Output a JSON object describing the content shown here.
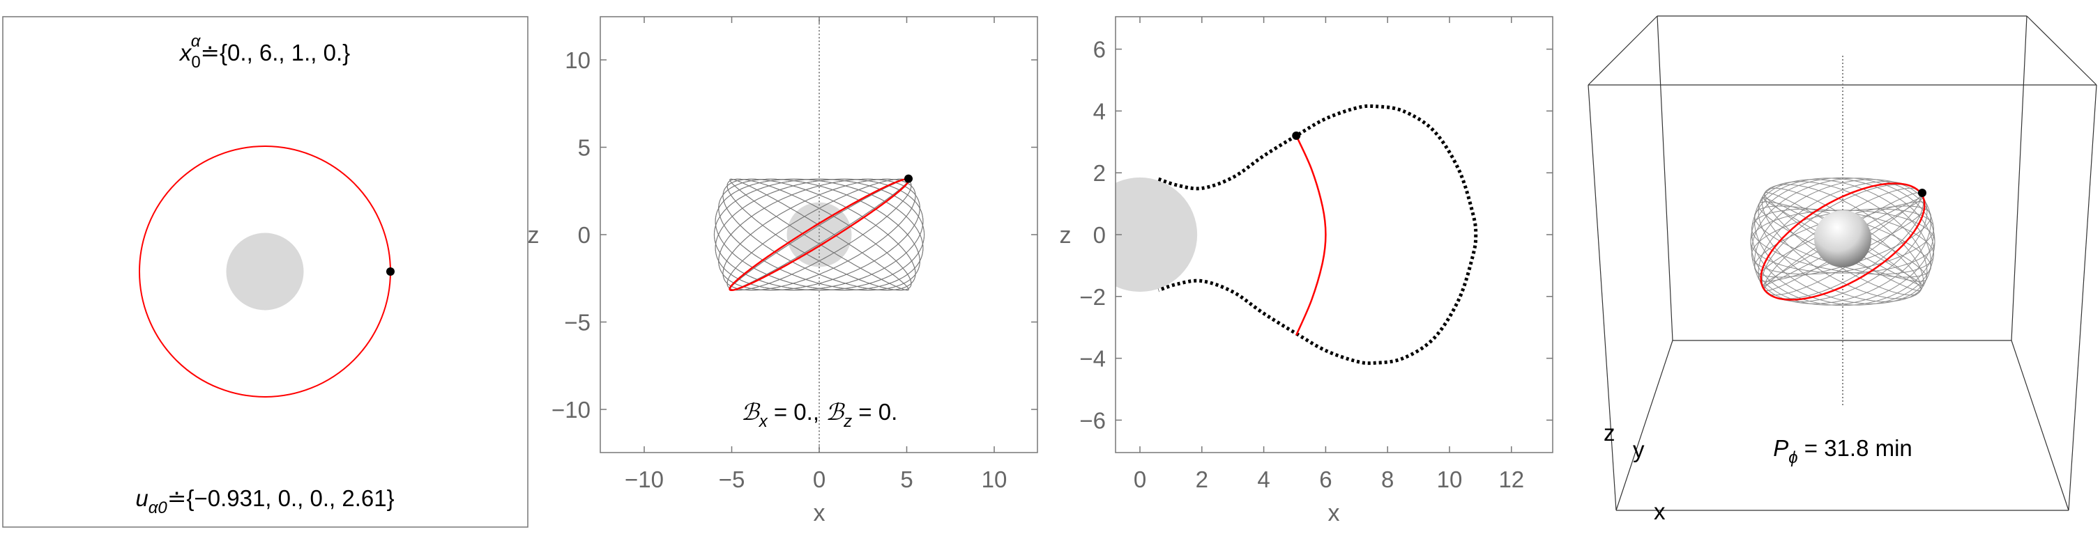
{
  "chart_data": [
    {
      "type": "line",
      "panel": "top-view",
      "caption_top": {
        "symbol": "x",
        "sub": "0",
        "sup": "α",
        "value": "≐{0., 6., 1., 0.}"
      },
      "caption_bottom": {
        "symbol": "u",
        "sub": "α0",
        "value": "≐{−0.931, 0., 0., 2.61}"
      },
      "orbit_radius": 6,
      "body_radius": 1.85,
      "marker": [
        6,
        0
      ],
      "colors": {
        "orbit": "#ff0000",
        "body": "#d9d9d9",
        "marker": "#000000"
      }
    },
    {
      "type": "line",
      "panel": "x-z projection",
      "xlabel": "x",
      "ylabel": "z",
      "xlim": [
        -12.5,
        12.5
      ],
      "ylim": [
        -12.5,
        12.5
      ],
      "xticks": [
        "−10",
        "−5",
        "0",
        "5",
        "10"
      ],
      "xtick_values": [
        -10,
        -5,
        0,
        5,
        10
      ],
      "yticks": [
        "−10",
        "−5",
        "0",
        "5",
        "10"
      ],
      "ytick_values": [
        -10,
        -5,
        0,
        5,
        10
      ],
      "caption": {
        "b1": "ℬ",
        "s1": "x",
        "v1": " = 0., ",
        "b2": "ℬ",
        "s2": "z",
        "v2": " = 0."
      },
      "orbit": {
        "radius": 6,
        "inclination_deg": 32,
        "precession_count": 22,
        "highlight_node_deg": -80
      },
      "body_radius": 1.85,
      "axis_line_z": [
        -12.5,
        12.5
      ],
      "marker": [
        5.1,
        3.2
      ],
      "colors": {
        "orbit": "#ff0000",
        "mesh": "#777777",
        "body": "#d9d9d9"
      }
    },
    {
      "type": "line",
      "panel": "meridional x-z",
      "xlabel": "x",
      "ylabel": "z",
      "xlim": [
        -0.8,
        13.3
      ],
      "ylim": [
        -7.1,
        7.1
      ],
      "xticks": [
        "0",
        "2",
        "4",
        "6",
        "8",
        "10",
        "12"
      ],
      "xtick_values": [
        0,
        2,
        4,
        6,
        8,
        10,
        12
      ],
      "yticks": [
        "−6",
        "−4",
        "−2",
        "0",
        "2",
        "4",
        "6"
      ],
      "ytick_values": [
        -6,
        -4,
        -2,
        0,
        2,
        4,
        6
      ],
      "envelope_dotted": [
        [
          0.6,
          1.8
        ],
        [
          1.2,
          1.6
        ],
        [
          2,
          1.5
        ],
        [
          3,
          1.85
        ],
        [
          4,
          2.55
        ],
        [
          5.05,
          3.2
        ],
        [
          6,
          3.75
        ],
        [
          7,
          4.1
        ],
        [
          7.6,
          4.15
        ],
        [
          8.5,
          4.0
        ],
        [
          9.5,
          3.35
        ],
        [
          10.3,
          2.1
        ],
        [
          10.75,
          0.7
        ],
        [
          10.85,
          0
        ]
      ],
      "red_arc": [
        [
          5.05,
          3.2
        ],
        [
          5.55,
          2.1
        ],
        [
          5.9,
          0.9
        ],
        [
          6,
          0
        ],
        [
          5.9,
          -0.9
        ],
        [
          5.55,
          -2.1
        ],
        [
          5.05,
          -3.25
        ]
      ],
      "body_radius": 1.85,
      "marker": [
        5.05,
        3.2
      ],
      "colors": {
        "orbit": "#ff0000",
        "envelope": "#000000",
        "body": "#d9d9d9"
      }
    },
    {
      "type": "line",
      "panel": "3d view",
      "axis_labels": {
        "x": "x",
        "y": "y",
        "z": "z"
      },
      "caption": {
        "symbol": "P",
        "sub": "ϕ",
        "value": " = 31.8 min"
      },
      "view_elevation_deg": 12,
      "colors": {
        "orbit": "#ff0000",
        "mesh": "#8a8a8a",
        "box": "#333333"
      }
    }
  ]
}
